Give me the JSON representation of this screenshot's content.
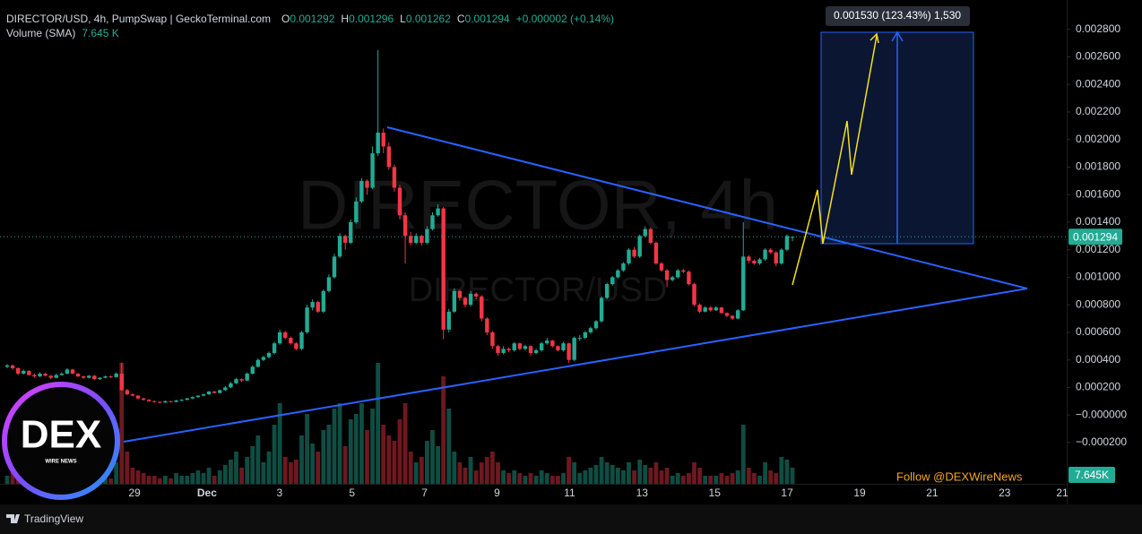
{
  "chart_data": {
    "type": "candlestick",
    "title": "DIRECTOR/USD, 4h, PumpSwap | GeckoTerminal.com",
    "legend": [
      {
        "key": "O",
        "value": 0.001292
      },
      {
        "key": "H",
        "value": 0.001296
      },
      {
        "key": "L",
        "value": 0.001262
      },
      {
        "key": "C",
        "value": 0.001294
      }
    ],
    "change": "+0.000002 (+0.14%)",
    "volume_title": "Volume (SMA)",
    "volume_value": "7.645 K",
    "watermark": "DIRECTOR, 4h",
    "watermark_sub": "DIRECTOR/USD",
    "colors": {
      "up": "#22ab94",
      "down": "#f23645"
    },
    "ylim": [
      -0.0005,
      0.003
    ],
    "yticks": [
      {
        "value": 0.0028,
        "label": "0.002800"
      },
      {
        "value": 0.0026,
        "label": "0.002600"
      },
      {
        "value": 0.0024,
        "label": "0.002400"
      },
      {
        "value": 0.0022,
        "label": "0.002200"
      },
      {
        "value": 0.002,
        "label": "0.002000"
      },
      {
        "value": 0.0018,
        "label": "0.001800"
      },
      {
        "value": 0.0016,
        "label": "0.001600"
      },
      {
        "value": 0.0014,
        "label": "0.001400"
      },
      {
        "value": 0.0012,
        "label": "0.001200"
      },
      {
        "value": 0.001,
        "label": "0.001000"
      },
      {
        "value": 0.0008,
        "label": "0.000800"
      },
      {
        "value": 0.0006,
        "label": "0.000600"
      },
      {
        "value": 0.0004,
        "label": "0.000400"
      },
      {
        "value": 0.0002,
        "label": "0.000200"
      },
      {
        "value": 0,
        "label": "−0.000000"
      },
      {
        "value": -0.0002,
        "label": "−0.000200"
      }
    ],
    "x_labels": [
      "29",
      "Dec",
      "3",
      "5",
      "7",
      "9",
      "11",
      "13",
      "15",
      "17",
      "19",
      "21",
      "23",
      "21"
    ],
    "last_price": 0.001294,
    "last_volume": "7.645K",
    "projection_label": "0.001530 (123.43%) 1,530",
    "candles": [
      [
        0.00035,
        0.00037,
        0.00034,
        0.00036
      ],
      [
        0.00036,
        0.000365,
        0.00033,
        0.00034
      ],
      [
        0.00034,
        0.000345,
        0.00029,
        0.0003
      ],
      [
        0.0003,
        0.00033,
        0.000295,
        0.00032
      ],
      [
        0.00032,
        0.000325,
        0.000285,
        0.00029
      ],
      [
        0.00029,
        0.0003,
        0.00027,
        0.00028
      ],
      [
        0.00028,
        0.00031,
        0.000275,
        0.0003
      ],
      [
        0.0003,
        0.000305,
        0.00028,
        0.000285
      ],
      [
        0.000285,
        0.00029,
        0.00026,
        0.00027
      ],
      [
        0.00027,
        0.0003,
        0.000265,
        0.00029
      ],
      [
        0.00029,
        0.00031,
        0.000285,
        0.0003
      ],
      [
        0.0003,
        0.00034,
        0.000295,
        0.00033
      ],
      [
        0.00033,
        0.000335,
        0.000295,
        0.0003
      ],
      [
        0.0003,
        0.000305,
        0.000275,
        0.00028
      ],
      [
        0.00028,
        0.000285,
        0.000262,
        0.00027
      ],
      [
        0.00027,
        0.00029,
        0.000265,
        0.000285
      ],
      [
        0.000285,
        0.00029,
        0.000255,
        0.00026
      ],
      [
        0.00026,
        0.000275,
        0.000255,
        0.00027
      ],
      [
        0.00027,
        0.000285,
        0.000265,
        0.00028
      ],
      [
        0.00028,
        0.000285,
        0.000268,
        0.000275
      ],
      [
        0.000275,
        0.00031,
        0.00027,
        0.0003
      ],
      [
        0.0003,
        0.00038,
        0.000175,
        0.00018
      ],
      [
        0.00018,
        0.00019,
        0.000145,
        0.00015
      ],
      [
        0.00015,
        0.00016,
        0.000135,
        0.00014
      ],
      [
        0.00014,
        0.000145,
        0.000115,
        0.00012
      ],
      [
        0.00012,
        0.000125,
        0.000105,
        0.00011
      ],
      [
        0.00011,
        0.000115,
        9.5e-05,
        0.0001
      ],
      [
        0.0001,
        0.000105,
        8.8e-05,
        9.5e-05
      ],
      [
        9.5e-05,
        0.0001,
        8.5e-05,
        9e-05
      ],
      [
        9e-05,
        0.000105,
        8.8e-05,
        0.0001
      ],
      [
        0.0001,
        0.000102,
        9e-05,
        9.5e-05
      ],
      [
        9.5e-05,
        0.00011,
        9.2e-05,
        0.000105
      ],
      [
        0.000105,
        0.000115,
        0.0001,
        0.00011
      ],
      [
        0.00011,
        0.000125,
        0.000105,
        0.00012
      ],
      [
        0.00012,
        0.000135,
        0.000115,
        0.00013
      ],
      [
        0.00013,
        0.000145,
        0.000125,
        0.00014
      ],
      [
        0.00014,
        0.000155,
        0.000135,
        0.00015
      ],
      [
        0.00015,
        0.000175,
        0.000145,
        0.00017
      ],
      [
        0.00017,
        0.000175,
        0.000155,
        0.00016
      ],
      [
        0.00016,
        0.000185,
        0.000155,
        0.00018
      ],
      [
        0.00018,
        0.00021,
        0.000175,
        0.0002
      ],
      [
        0.0002,
        0.00024,
        0.000195,
        0.00023
      ],
      [
        0.00023,
        0.00027,
        0.000225,
        0.00026
      ],
      [
        0.00026,
        0.000265,
        0.00024,
        0.00025
      ],
      [
        0.00025,
        0.00031,
        0.000245,
        0.0003
      ],
      [
        0.0003,
        0.00036,
        0.000295,
        0.00035
      ],
      [
        0.00035,
        0.00041,
        0.000345,
        0.0004
      ],
      [
        0.0004,
        0.00043,
        0.00039,
        0.00042
      ],
      [
        0.00042,
        0.00046,
        0.00041,
        0.00045
      ],
      [
        0.00045,
        0.00053,
        0.00044,
        0.00052
      ],
      [
        0.00052,
        0.00062,
        0.00051,
        0.0006
      ],
      [
        0.0006,
        0.00061,
        0.00055,
        0.00056
      ],
      [
        0.00056,
        0.00057,
        0.00051,
        0.00052
      ],
      [
        0.00052,
        0.00053,
        0.00047,
        0.00048
      ],
      [
        0.00048,
        0.00061,
        0.00047,
        0.0006
      ],
      [
        0.0006,
        0.0008,
        0.00059,
        0.00078
      ],
      [
        0.00078,
        0.00084,
        0.00076,
        0.00082
      ],
      [
        0.00082,
        0.00083,
        0.00074,
        0.00075
      ],
      [
        0.00075,
        0.00091,
        0.00074,
        0.0009
      ],
      [
        0.0009,
        0.00102,
        0.00089,
        0.001
      ],
      [
        0.001,
        0.00117,
        0.00099,
        0.00115
      ],
      [
        0.00115,
        0.00132,
        0.00114,
        0.0013
      ],
      [
        0.0013,
        0.00131,
        0.0012,
        0.00125
      ],
      [
        0.00125,
        0.00142,
        0.00124,
        0.0014
      ],
      [
        0.0014,
        0.00158,
        0.00139,
        0.00155
      ],
      [
        0.00155,
        0.00172,
        0.00154,
        0.0017
      ],
      [
        0.0017,
        0.00171,
        0.0016,
        0.00165
      ],
      [
        0.00165,
        0.00195,
        0.00164,
        0.0019
      ],
      [
        0.0019,
        0.00265,
        0.00188,
        0.00205
      ],
      [
        0.00205,
        0.00208,
        0.0019,
        0.00195
      ],
      [
        0.00195,
        0.00198,
        0.00178,
        0.0018
      ],
      [
        0.0018,
        0.00182,
        0.00162,
        0.00165
      ],
      [
        0.00165,
        0.00167,
        0.00142,
        0.00145
      ],
      [
        0.00145,
        0.00147,
        0.0011,
        0.0013
      ],
      [
        0.0013,
        0.00133,
        0.00123,
        0.00125
      ],
      [
        0.00125,
        0.00132,
        0.00124,
        0.0013
      ],
      [
        0.0013,
        0.00131,
        0.00123,
        0.00125
      ],
      [
        0.00125,
        0.00137,
        0.00124,
        0.00135
      ],
      [
        0.00135,
        0.00147,
        0.00134,
        0.00145
      ],
      [
        0.00145,
        0.00153,
        0.00144,
        0.0015
      ],
      [
        0.0015,
        0.00151,
        0.00055,
        0.00062
      ],
      [
        0.00062,
        0.00077,
        0.0006,
        0.00075
      ],
      [
        0.00075,
        0.00092,
        0.00074,
        0.0009
      ],
      [
        0.0009,
        0.00091,
        0.00083,
        0.00085
      ],
      [
        0.00085,
        0.00086,
        0.00078,
        0.0008
      ],
      [
        0.0008,
        0.0009,
        0.00079,
        0.00088
      ],
      [
        0.00088,
        0.00089,
        0.00084,
        0.00086
      ],
      [
        0.00086,
        0.00087,
        0.00068,
        0.0007
      ],
      [
        0.0007,
        0.00071,
        0.00058,
        0.0006
      ],
      [
        0.0006,
        0.00061,
        0.00048,
        0.0005
      ],
      [
        0.0005,
        0.00051,
        0.00043,
        0.00045
      ],
      [
        0.00045,
        0.0005,
        0.00044,
        0.00048
      ],
      [
        0.00048,
        0.00049,
        0.000455,
        0.00047
      ],
      [
        0.00047,
        0.00053,
        0.00046,
        0.00052
      ],
      [
        0.00052,
        0.000525,
        0.00047,
        0.00048
      ],
      [
        0.00048,
        0.00051,
        0.00047,
        0.0005
      ],
      [
        0.0005,
        0.000505,
        0.00043,
        0.00045
      ],
      [
        0.00045,
        0.00048,
        0.00044,
        0.00047
      ],
      [
        0.00047,
        0.00053,
        0.00046,
        0.00052
      ],
      [
        0.00052,
        0.00056,
        0.00051,
        0.00054
      ],
      [
        0.00054,
        0.000545,
        0.00049,
        0.0005
      ],
      [
        0.0005,
        0.000505,
        0.00046,
        0.00047
      ],
      [
        0.00047,
        0.00053,
        0.00046,
        0.00052
      ],
      [
        0.00052,
        0.000525,
        0.00038,
        0.0004
      ],
      [
        0.0004,
        0.00057,
        0.00039,
        0.00056
      ],
      [
        0.00056,
        0.00058,
        0.00054,
        0.00056
      ],
      [
        0.00056,
        0.00061,
        0.00055,
        0.0006
      ],
      [
        0.0006,
        0.00064,
        0.00059,
        0.00063
      ],
      [
        0.00063,
        0.00069,
        0.00062,
        0.00068
      ],
      [
        0.00068,
        0.00086,
        0.00067,
        0.00085
      ],
      [
        0.00085,
        0.00096,
        0.00084,
        0.00095
      ],
      [
        0.00095,
        0.00101,
        0.00094,
        0.001
      ],
      [
        0.001,
        0.00106,
        0.00099,
        0.00105
      ],
      [
        0.00105,
        0.00111,
        0.00104,
        0.0011
      ],
      [
        0.0011,
        0.00121,
        0.00109,
        0.0012
      ],
      [
        0.0012,
        0.00122,
        0.00114,
        0.00115
      ],
      [
        0.00115,
        0.00131,
        0.00114,
        0.0013
      ],
      [
        0.0013,
        0.00137,
        0.00129,
        0.00135
      ],
      [
        0.00135,
        0.00136,
        0.00124,
        0.00125
      ],
      [
        0.00125,
        0.00126,
        0.00109,
        0.0011
      ],
      [
        0.0011,
        0.00111,
        0.00104,
        0.00105
      ],
      [
        0.00105,
        0.00106,
        0.00093,
        0.00098
      ],
      [
        0.00098,
        0.00101,
        0.00097,
        0.001
      ],
      [
        0.001,
        0.00106,
        0.00099,
        0.00105
      ],
      [
        0.00105,
        0.00106,
        0.00103,
        0.00104
      ],
      [
        0.00104,
        0.00105,
        0.00094,
        0.00095
      ],
      [
        0.00095,
        0.00096,
        0.00079,
        0.0008
      ],
      [
        0.0008,
        0.00081,
        0.00074,
        0.00075
      ],
      [
        0.00075,
        0.00079,
        0.000745,
        0.00078
      ],
      [
        0.00078,
        0.00079,
        0.00075,
        0.00076
      ],
      [
        0.00076,
        0.00079,
        0.000755,
        0.00078
      ],
      [
        0.00078,
        0.000785,
        0.000735,
        0.00074
      ],
      [
        0.00074,
        0.000745,
        0.00071,
        0.00072
      ],
      [
        0.00072,
        0.000725,
        0.00069,
        0.0007
      ],
      [
        0.0007,
        0.00077,
        0.000695,
        0.00076
      ],
      [
        0.00076,
        0.0014,
        0.000755,
        0.00115
      ],
      [
        0.00115,
        0.00116,
        0.0011,
        0.00112
      ],
      [
        0.00112,
        0.00113,
        0.00109,
        0.0011
      ],
      [
        0.0011,
        0.00114,
        0.00109,
        0.00113
      ],
      [
        0.00113,
        0.00121,
        0.00112,
        0.0012
      ],
      [
        0.0012,
        0.00121,
        0.00117,
        0.00118
      ],
      [
        0.00118,
        0.00119,
        0.00108,
        0.0011
      ],
      [
        0.0011,
        0.00121,
        0.00109,
        0.0012
      ],
      [
        0.0012,
        0.00131,
        0.00119,
        0.0013
      ],
      [
        0.001292,
        0.001296,
        0.001262,
        0.001294
      ]
    ],
    "volume": [
      3,
      5,
      4,
      3,
      2,
      3,
      4,
      2,
      3,
      5,
      4,
      6,
      3,
      2,
      3,
      4,
      3,
      2,
      3,
      2,
      8,
      45,
      12,
      6,
      5,
      4,
      3,
      3,
      2,
      3,
      2,
      4,
      3,
      3,
      4,
      5,
      4,
      6,
      3,
      5,
      7,
      9,
      12,
      6,
      10,
      14,
      18,
      8,
      12,
      22,
      30,
      10,
      8,
      9,
      18,
      26,
      15,
      12,
      20,
      22,
      28,
      30,
      14,
      24,
      26,
      30,
      20,
      28,
      45,
      22,
      18,
      16,
      24,
      30,
      12,
      8,
      10,
      16,
      20,
      14,
      40,
      28,
      12,
      8,
      6,
      10,
      5,
      8,
      10,
      12,
      8,
      5,
      4,
      5,
      4,
      3,
      4,
      3,
      5,
      4,
      3,
      3,
      4,
      10,
      8,
      4,
      5,
      6,
      7,
      10,
      8,
      7,
      6,
      5,
      8,
      5,
      9,
      7,
      6,
      8,
      5,
      6,
      3,
      4,
      3,
      4,
      8,
      6,
      3,
      3,
      3,
      4,
      3,
      4,
      5,
      22,
      6,
      4,
      3,
      8,
      5,
      4,
      10,
      9,
      6
    ]
  },
  "promo": "Follow @DEXWireNews",
  "logo": {
    "title": "DEX",
    "subtitle": "WIRE NEWS"
  },
  "footer": "TradingView"
}
